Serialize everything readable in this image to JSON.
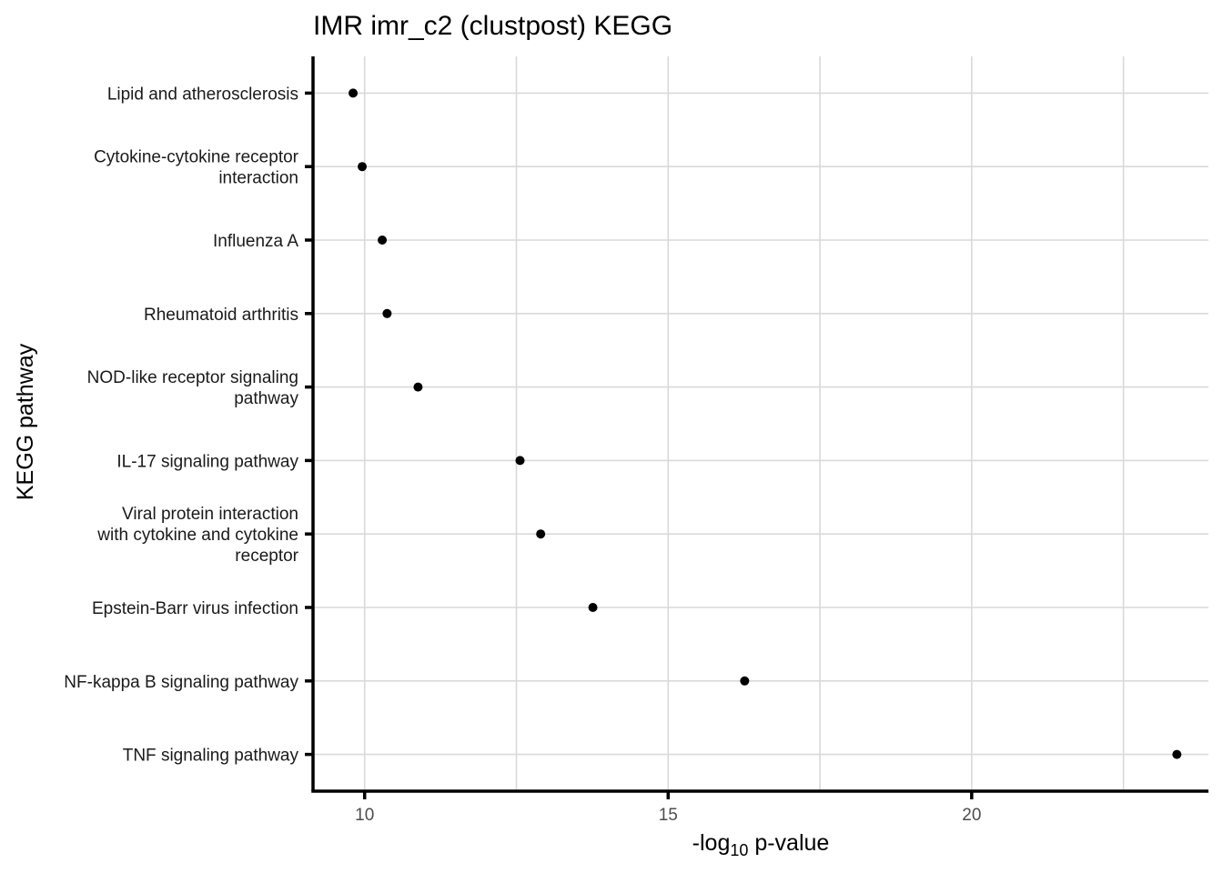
{
  "chart_data": {
    "type": "scatter",
    "title": "IMR imr_c2 (clustpost) KEGG",
    "xlabel_prefix": "-log",
    "xlabel_sub": "10",
    "xlabel_suffix": " p-value",
    "ylabel": "KEGG pathway",
    "xlim": [
      9.15,
      23.9
    ],
    "xticks": [
      10,
      15,
      20
    ],
    "grid": true,
    "point_color": "#000000",
    "points": [
      {
        "label": [
          "Lipid and atherosclerosis"
        ],
        "x": 9.81
      },
      {
        "label": [
          "Cytokine-cytokine receptor",
          "interaction"
        ],
        "x": 9.96
      },
      {
        "label": [
          "Influenza A"
        ],
        "x": 10.29
      },
      {
        "label": [
          "Rheumatoid arthritis"
        ],
        "x": 10.37
      },
      {
        "label": [
          "NOD-like receptor signaling",
          "pathway"
        ],
        "x": 10.88
      },
      {
        "label": [
          "IL-17 signaling pathway"
        ],
        "x": 12.56
      },
      {
        "label": [
          "Viral protein interaction",
          "with cytokine and cytokine",
          "receptor"
        ],
        "x": 12.9
      },
      {
        "label": [
          "Epstein-Barr virus infection"
        ],
        "x": 13.76
      },
      {
        "label": [
          "NF-kappa B signaling pathway"
        ],
        "x": 16.26
      },
      {
        "label": [
          "TNF signaling pathway"
        ],
        "x": 23.38
      }
    ]
  }
}
